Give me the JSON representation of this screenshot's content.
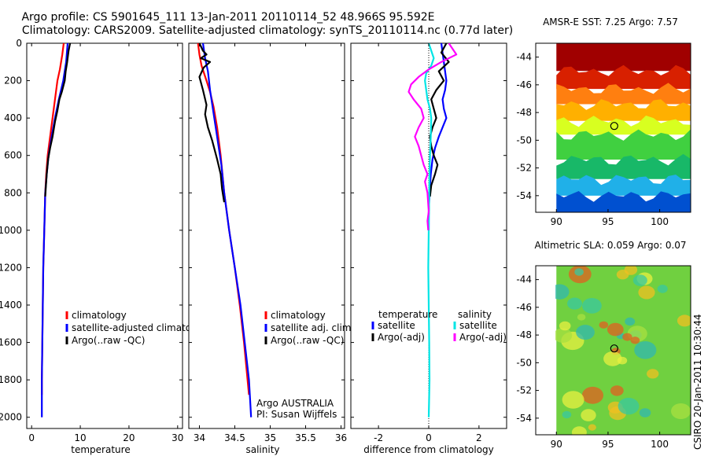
{
  "header": {
    "line1": "Argo profile: CS 5901645_111 13-Jan-2011 20110114_52 48.966S 95.592E",
    "line2": "Climatology: CARS2009. Satellite-adjusted climatology: synTS_20110114.nc (0.77d later)"
  },
  "side_label": "CSIRO 20-Jan-2011 10:30:44",
  "chart_data": [
    {
      "id": "temperature",
      "type": "line",
      "xlabel": "temperature",
      "xlim": [
        -1,
        31
      ],
      "ylim": [
        0,
        2060
      ],
      "y_reversed": true,
      "xticks": [
        0,
        10,
        20,
        30
      ],
      "xtick_labels": [
        "0",
        "10",
        "20",
        "30"
      ],
      "yticks": [
        0,
        200,
        400,
        600,
        800,
        1000,
        1200,
        1400,
        1600,
        1800,
        2000
      ],
      "ytick_labels": [
        "0",
        "200",
        "400",
        "600",
        "800",
        "1000",
        "1200",
        "1400",
        "1600",
        "1800",
        "2000"
      ],
      "legend": [
        {
          "text": "climatology",
          "color": "#ff0000"
        },
        {
          "text": "satellite-adjusted climatolo",
          "color": "#0000ff"
        },
        {
          "text": "Argo(..raw -QC)",
          "color": "#000000"
        }
      ],
      "series": [
        {
          "color": "#ff0000",
          "points": [
            [
              6.6,
              0
            ],
            [
              6.3,
              60
            ],
            [
              5.8,
              140
            ],
            [
              5.3,
              200
            ],
            [
              4.8,
              300
            ],
            [
              4.3,
              400
            ],
            [
              3.8,
              500
            ],
            [
              3.3,
              600
            ],
            [
              3.0,
              700
            ],
            [
              2.8,
              800
            ],
            [
              2.6,
              1000
            ],
            [
              2.4,
              1200
            ],
            [
              2.3,
              1400
            ],
            [
              2.2,
              1600
            ],
            [
              2.1,
              1800
            ],
            [
              2.1,
              1880
            ]
          ]
        },
        {
          "color": "#0000ff",
          "points": [
            [
              7.4,
              0
            ],
            [
              7.1,
              100
            ],
            [
              6.5,
              200
            ],
            [
              5.6,
              300
            ],
            [
              4.8,
              400
            ],
            [
              4.1,
              500
            ],
            [
              3.5,
              600
            ],
            [
              3.1,
              700
            ],
            [
              2.8,
              800
            ],
            [
              2.6,
              1000
            ],
            [
              2.4,
              1200
            ],
            [
              2.3,
              1400
            ],
            [
              2.2,
              1600
            ],
            [
              2.1,
              1800
            ],
            [
              2.1,
              2000
            ]
          ]
        },
        {
          "color": "#000000",
          "points": [
            [
              7.9,
              0
            ],
            [
              7.6,
              40
            ],
            [
              7.3,
              100
            ],
            [
              7.0,
              150
            ],
            [
              6.8,
              200
            ],
            [
              6.2,
              260
            ],
            [
              5.7,
              300
            ],
            [
              5.3,
              360
            ],
            [
              4.8,
              420
            ],
            [
              4.3,
              500
            ],
            [
              3.8,
              560
            ],
            [
              3.4,
              620
            ],
            [
              3.1,
              700
            ],
            [
              2.9,
              780
            ],
            [
              2.8,
              820
            ]
          ]
        }
      ]
    },
    {
      "id": "salinity",
      "type": "line",
      "xlabel": "salinity",
      "xlim": [
        33.85,
        36.05
      ],
      "ylim": [
        0,
        2060
      ],
      "y_reversed": true,
      "xticks": [
        34,
        34.5,
        35,
        35.5,
        36
      ],
      "xtick_labels": [
        "34",
        "34.5",
        "35",
        "35.5",
        "36"
      ],
      "legend": [
        {
          "text": "climatology",
          "color": "#ff0000"
        },
        {
          "text": "satellite adj. clim.",
          "color": "#0000ff"
        },
        {
          "text": "Argo(..raw -QC)",
          "color": "#000000"
        }
      ],
      "annotation": [
        "Argo AUSTRALIA",
        "PI: Susan Wijffels"
      ],
      "series": [
        {
          "color": "#ff0000",
          "points": [
            [
              33.98,
              0
            ],
            [
              34.0,
              60
            ],
            [
              34.03,
              120
            ],
            [
              34.1,
              200
            ],
            [
              34.15,
              260
            ],
            [
              34.2,
              340
            ],
            [
              34.25,
              450
            ],
            [
              34.3,
              600
            ],
            [
              34.35,
              800
            ],
            [
              34.42,
              1000
            ],
            [
              34.5,
              1200
            ],
            [
              34.57,
              1400
            ],
            [
              34.63,
              1600
            ],
            [
              34.68,
              1800
            ],
            [
              34.7,
              1880
            ]
          ]
        },
        {
          "color": "#0000ff",
          "points": [
            [
              34.05,
              0
            ],
            [
              34.08,
              80
            ],
            [
              34.12,
              150
            ],
            [
              34.15,
              250
            ],
            [
              34.19,
              350
            ],
            [
              34.23,
              450
            ],
            [
              34.27,
              550
            ],
            [
              34.31,
              650
            ],
            [
              34.35,
              800
            ],
            [
              34.42,
              1000
            ],
            [
              34.5,
              1200
            ],
            [
              34.58,
              1400
            ],
            [
              34.64,
              1600
            ],
            [
              34.7,
              1800
            ],
            [
              34.73,
              2000
            ]
          ]
        },
        {
          "color": "#000000",
          "points": [
            [
              34.0,
              0
            ],
            [
              34.05,
              40
            ],
            [
              34.1,
              60
            ],
            [
              34.02,
              80
            ],
            [
              34.15,
              100
            ],
            [
              34.06,
              130
            ],
            [
              34.0,
              180
            ],
            [
              34.05,
              250
            ],
            [
              34.1,
              330
            ],
            [
              34.08,
              380
            ],
            [
              34.12,
              450
            ],
            [
              34.18,
              520
            ],
            [
              34.25,
              620
            ],
            [
              34.3,
              700
            ],
            [
              34.32,
              780
            ],
            [
              34.35,
              850
            ]
          ]
        }
      ]
    },
    {
      "id": "difference",
      "type": "line",
      "xlabel": "difference from climatology",
      "xlim": [
        -3.1,
        3.1
      ],
      "ylim": [
        0,
        2060
      ],
      "y_reversed": true,
      "xticks": [
        -2,
        0,
        2
      ],
      "xtick_labels": [
        "-2",
        "0",
        "2"
      ],
      "legend_temperature_title": "temperature",
      "legend_salinity_title": "salinity",
      "legend": [
        {
          "text": "satellite",
          "color": "#0000ff",
          "group": "temperature"
        },
        {
          "text": "Argo(-adj)",
          "color": "#000000",
          "group": "temperature"
        },
        {
          "text": "satellite",
          "color": "#00e5e5",
          "group": "salinity"
        },
        {
          "text": "Argo(-adj)",
          "color": "#ff00ff",
          "group": "salinity"
        }
      ],
      "series": [
        {
          "color": "#0000ff",
          "points": [
            [
              0.5,
              0
            ],
            [
              0.55,
              50
            ],
            [
              0.6,
              100
            ],
            [
              0.65,
              150
            ],
            [
              0.7,
              200
            ],
            [
              0.65,
              250
            ],
            [
              0.55,
              300
            ],
            [
              0.6,
              350
            ],
            [
              0.7,
              400
            ],
            [
              0.55,
              450
            ],
            [
              0.4,
              500
            ],
            [
              0.25,
              560
            ],
            [
              0.15,
              620
            ],
            [
              0.08,
              700
            ],
            [
              0.03,
              800
            ],
            [
              0.0,
              900
            ],
            [
              0.0,
              1000
            ]
          ]
        },
        {
          "color": "#000000",
          "points": [
            [
              0.7,
              0
            ],
            [
              0.5,
              50
            ],
            [
              0.8,
              100
            ],
            [
              0.4,
              150
            ],
            [
              0.6,
              200
            ],
            [
              0.3,
              250
            ],
            [
              0.1,
              300
            ],
            [
              0.2,
              350
            ],
            [
              0.3,
              400
            ],
            [
              0.15,
              450
            ],
            [
              0.05,
              500
            ],
            [
              0.1,
              550
            ],
            [
              0.2,
              600
            ],
            [
              0.35,
              650
            ],
            [
              0.25,
              700
            ],
            [
              0.1,
              760
            ],
            [
              0.05,
              820
            ]
          ]
        },
        {
          "color": "#00e5e5",
          "points": [
            [
              0.0,
              0
            ],
            [
              0.1,
              40
            ],
            [
              0.2,
              80
            ],
            [
              0.1,
              120
            ],
            [
              -0.1,
              160
            ],
            [
              -0.15,
              200
            ],
            [
              -0.1,
              250
            ],
            [
              -0.05,
              300
            ],
            [
              0.05,
              350
            ],
            [
              0.1,
              400
            ],
            [
              0.08,
              500
            ],
            [
              0.05,
              600
            ],
            [
              0.03,
              700
            ],
            [
              0.02,
              800
            ],
            [
              0.0,
              1000
            ],
            [
              -0.02,
              1200
            ],
            [
              0.0,
              1400
            ],
            [
              0.02,
              1600
            ],
            [
              0.03,
              1800
            ],
            [
              0.0,
              2000
            ]
          ]
        },
        {
          "color": "#ff00ff",
          "points": [
            [
              0.8,
              0
            ],
            [
              1.1,
              60
            ],
            [
              0.5,
              100
            ],
            [
              0.0,
              140
            ],
            [
              -0.4,
              180
            ],
            [
              -0.7,
              220
            ],
            [
              -0.8,
              260
            ],
            [
              -0.6,
              300
            ],
            [
              -0.3,
              350
            ],
            [
              -0.2,
              400
            ],
            [
              -0.4,
              450
            ],
            [
              -0.55,
              500
            ],
            [
              -0.4,
              550
            ],
            [
              -0.3,
              600
            ],
            [
              -0.2,
              650
            ],
            [
              -0.05,
              700
            ],
            [
              -0.15,
              740
            ],
            [
              -0.05,
              800
            ],
            [
              0.0,
              900
            ],
            [
              -0.05,
              950
            ],
            [
              -0.02,
              1000
            ]
          ]
        }
      ]
    },
    {
      "id": "sst-map",
      "type": "heatmap",
      "title": "AMSR-E SST: 7.25 Argo: 7.57",
      "xlim": [
        88,
        103
      ],
      "ylim": [
        -55.2,
        -43
      ],
      "xticks": [
        90,
        95,
        100
      ],
      "xtick_labels": [
        "90",
        "95",
        "100"
      ],
      "yticks": [
        -44,
        -46,
        -48,
        -50,
        -52,
        -54
      ],
      "ytick_labels": [
        "-44",
        "-46",
        "-48",
        "-50",
        "-52",
        "-54"
      ],
      "data_xlim": [
        90,
        103
      ],
      "marker": {
        "lon": 95.6,
        "lat": -48.97
      },
      "field_bands": [
        {
          "lat": -43.0,
          "color": "#a00000"
        },
        {
          "lat": -45.0,
          "color": "#d82000"
        },
        {
          "lat": -46.3,
          "color": "#ff7f10"
        },
        {
          "lat": -47.4,
          "color": "#ffb000"
        },
        {
          "lat": -48.6,
          "color": "#d8ff20"
        },
        {
          "lat": -49.6,
          "color": "#40d040"
        },
        {
          "lat": -51.4,
          "color": "#18b868"
        },
        {
          "lat": -52.8,
          "color": "#20b0e8"
        },
        {
          "lat": -54.0,
          "color": "#0050d0"
        },
        {
          "lat": -55.2,
          "color": "#000090"
        }
      ]
    },
    {
      "id": "sla-map",
      "type": "heatmap",
      "title": "Altimetric SLA: 0.059 Argo: 0.07",
      "xlim": [
        88,
        103
      ],
      "ylim": [
        -55.2,
        -43
      ],
      "xticks": [
        90,
        95,
        100
      ],
      "xtick_labels": [
        "90",
        "95",
        "100"
      ],
      "yticks": [
        -44,
        -46,
        -48,
        -50,
        -52,
        -54
      ],
      "ytick_labels": [
        "-44",
        "-46",
        "-48",
        "-50",
        "-52",
        "-54"
      ],
      "data_xlim": [
        90,
        103
      ],
      "marker": {
        "lon": 95.6,
        "lat": -48.97
      },
      "field_bands": [
        {
          "lat": -43.0,
          "color": "#70d040"
        },
        {
          "lat": -55.2,
          "color": "#70d040"
        }
      ]
    }
  ]
}
